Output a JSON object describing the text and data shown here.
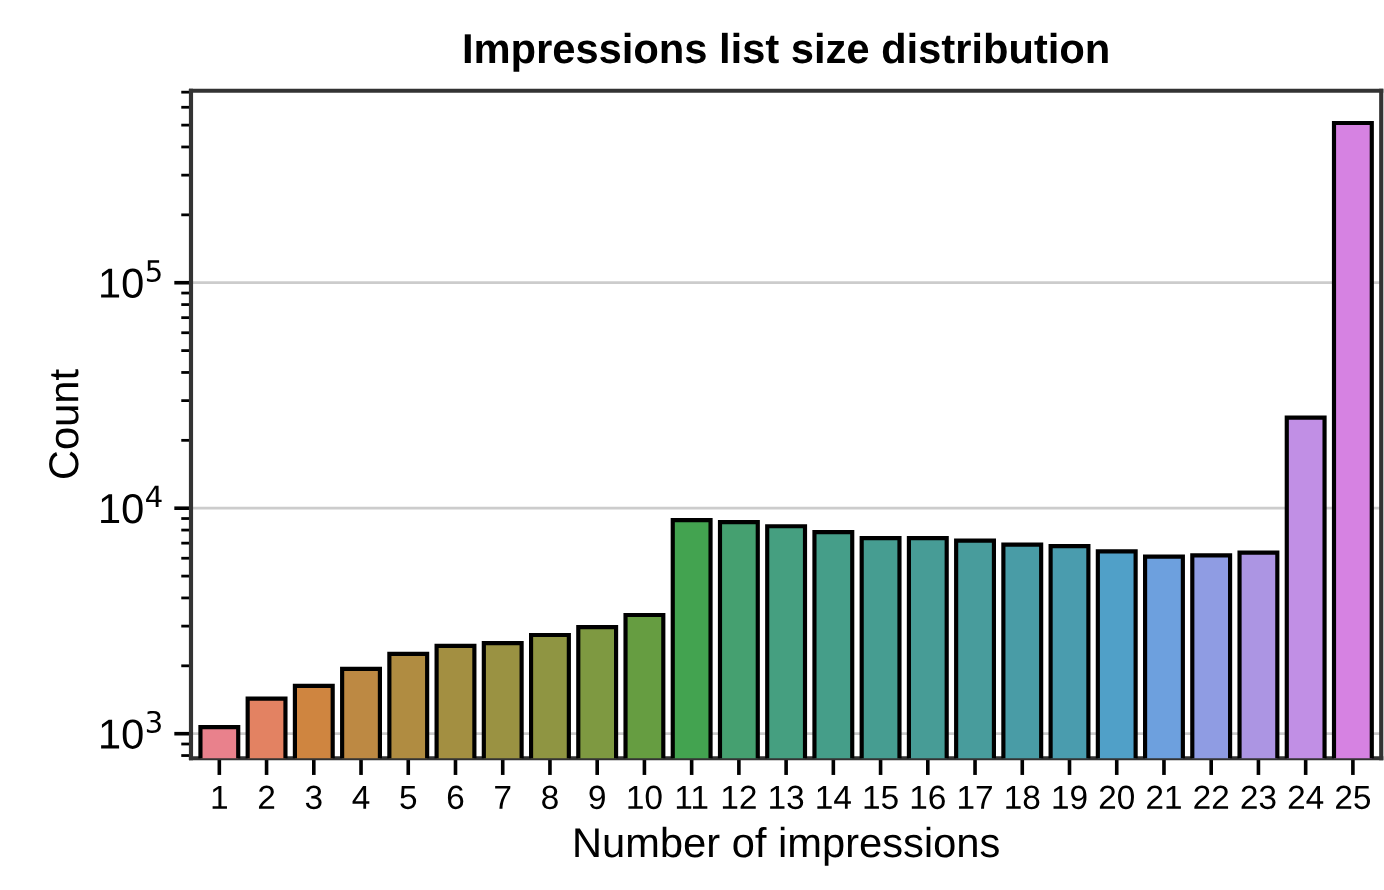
{
  "chart_data": {
    "type": "bar",
    "title": "Impressions list size distribution",
    "xlabel": "Number of impressions",
    "ylabel": "Count",
    "categories": [
      "1",
      "2",
      "3",
      "4",
      "5",
      "6",
      "7",
      "8",
      "9",
      "10",
      "11",
      "12",
      "13",
      "14",
      "15",
      "16",
      "17",
      "18",
      "19",
      "20",
      "21",
      "22",
      "23",
      "24",
      "25"
    ],
    "values": [
      1070,
      1430,
      1630,
      1940,
      2260,
      2450,
      2520,
      2740,
      2970,
      3360,
      8850,
      8670,
      8320,
      7830,
      7370,
      7370,
      7180,
      6890,
      6790,
      6440,
      6100,
      6180,
      6350,
      25200,
      511000
    ],
    "colors": [
      "#e9818c",
      "#e38262",
      "#cf8540",
      "#bd8943",
      "#b08c41",
      "#a38f41",
      "#9a9242",
      "#8f9542",
      "#7e9941",
      "#669d41",
      "#43a350",
      "#45a070",
      "#459f80",
      "#459e89",
      "#469d91",
      "#479c96",
      "#489c9c",
      "#499ca6",
      "#4a9cae",
      "#50a0c8",
      "#6da0de",
      "#8f9ce3",
      "#ac95e3",
      "#c18fe5",
      "#d682e2"
    ],
    "log": "y",
    "ylim": [
      778,
      710000
    ],
    "yticks": [
      {
        "value": 1000,
        "label": "10$^{3}$"
      },
      {
        "value": 10000,
        "label": "10$^{4}$"
      },
      {
        "value": 100000,
        "label": "10$^{5}$"
      }
    ],
    "grid": "y"
  }
}
